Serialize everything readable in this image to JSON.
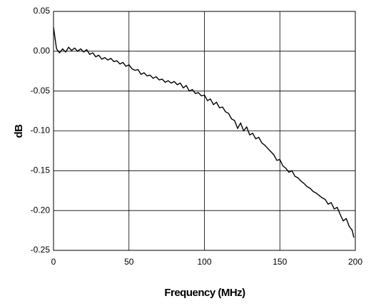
{
  "chart_data": {
    "type": "line",
    "xlabel": "Frequency (MHz)",
    "ylabel": "dB",
    "x": [
      0,
      2,
      4,
      6,
      8,
      10,
      12,
      14,
      16,
      18,
      20,
      22,
      24,
      26,
      28,
      30,
      32,
      34,
      36,
      38,
      40,
      42,
      44,
      46,
      48,
      50,
      52,
      54,
      56,
      58,
      60,
      62,
      64,
      66,
      68,
      70,
      72,
      74,
      76,
      78,
      80,
      82,
      84,
      86,
      88,
      90,
      92,
      94,
      96,
      98,
      100,
      102,
      104,
      106,
      108,
      110,
      112,
      114,
      116,
      118,
      120,
      122,
      124,
      126,
      128,
      130,
      132,
      134,
      136,
      138,
      140,
      142,
      144,
      146,
      148,
      150,
      152,
      154,
      156,
      158,
      160,
      162,
      164,
      166,
      168,
      170,
      172,
      174,
      176,
      178,
      180,
      182,
      184,
      186,
      188,
      190,
      192,
      194,
      196,
      198,
      199
    ],
    "series": [
      {
        "color": "#000000",
        "values": [
          0.03,
          0.003,
          -0.002,
          0.003,
          -0.001,
          0.005,
          0.001,
          0.004,
          0.0,
          0.003,
          -0.001,
          0.002,
          -0.004,
          -0.002,
          -0.007,
          -0.005,
          -0.01,
          -0.008,
          -0.011,
          -0.009,
          -0.013,
          -0.012,
          -0.016,
          -0.014,
          -0.019,
          -0.017,
          -0.022,
          -0.024,
          -0.023,
          -0.029,
          -0.027,
          -0.031,
          -0.03,
          -0.034,
          -0.032,
          -0.036,
          -0.035,
          -0.039,
          -0.037,
          -0.04,
          -0.038,
          -0.042,
          -0.04,
          -0.046,
          -0.043,
          -0.05,
          -0.048,
          -0.053,
          -0.052,
          -0.056,
          -0.055,
          -0.062,
          -0.06,
          -0.067,
          -0.064,
          -0.071,
          -0.07,
          -0.076,
          -0.078,
          -0.085,
          -0.087,
          -0.097,
          -0.09,
          -0.1,
          -0.095,
          -0.105,
          -0.103,
          -0.11,
          -0.108,
          -0.115,
          -0.118,
          -0.122,
          -0.126,
          -0.13,
          -0.137,
          -0.136,
          -0.144,
          -0.147,
          -0.152,
          -0.15,
          -0.157,
          -0.159,
          -0.163,
          -0.166,
          -0.17,
          -0.172,
          -0.176,
          -0.178,
          -0.181,
          -0.184,
          -0.186,
          -0.192,
          -0.19,
          -0.198,
          -0.196,
          -0.205,
          -0.213,
          -0.21,
          -0.22,
          -0.225,
          -0.234
        ]
      }
    ],
    "xlim": [
      0,
      200
    ],
    "xticks": [
      0,
      50,
      100,
      150,
      200
    ],
    "ylim": [
      -0.25,
      0.05
    ],
    "yticks": [
      {
        "value": -0.25,
        "label": "-0.25"
      },
      {
        "value": -0.2,
        "label": "-0.20"
      },
      {
        "value": -0.15,
        "label": "-0.15"
      },
      {
        "value": -0.1,
        "label": "-0.10"
      },
      {
        "value": -0.05,
        "label": "-0.05"
      },
      {
        "value": 0,
        "label": "0.00"
      },
      {
        "value": 0.05,
        "label": "0.05"
      }
    ],
    "grid": true
  }
}
